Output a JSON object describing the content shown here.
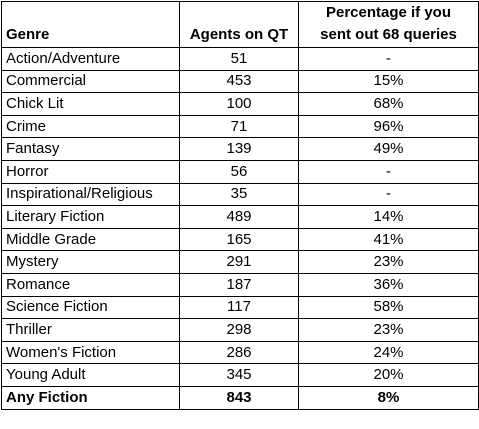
{
  "headers": {
    "genre": "Genre",
    "agents": "Agents on QT",
    "percentage": "Percentage if you sent out 68 queries"
  },
  "rows": [
    {
      "genre": "Action/Adventure",
      "agents": "51",
      "percentage": "-"
    },
    {
      "genre": "Commercial",
      "agents": "453",
      "percentage": "15%"
    },
    {
      "genre": "Chick Lit",
      "agents": "100",
      "percentage": "68%"
    },
    {
      "genre": "Crime",
      "agents": "71",
      "percentage": "96%"
    },
    {
      "genre": "Fantasy",
      "agents": "139",
      "percentage": "49%"
    },
    {
      "genre": "Horror",
      "agents": "56",
      "percentage": "-"
    },
    {
      "genre": "Inspirational/Religious",
      "agents": "35",
      "percentage": "-"
    },
    {
      "genre": "Literary Fiction",
      "agents": "489",
      "percentage": "14%"
    },
    {
      "genre": "Middle Grade",
      "agents": "165",
      "percentage": "41%"
    },
    {
      "genre": "Mystery",
      "agents": "291",
      "percentage": "23%"
    },
    {
      "genre": "Romance",
      "agents": "187",
      "percentage": "36%"
    },
    {
      "genre": "Science Fiction",
      "agents": "117",
      "percentage": "58%"
    },
    {
      "genre": "Thriller",
      "agents": "298",
      "percentage": "23%"
    },
    {
      "genre": "Women's Fiction",
      "agents": "286",
      "percentage": "24%"
    },
    {
      "genre": "Young Adult",
      "agents": "345",
      "percentage": "20%"
    }
  ],
  "total": {
    "genre": "Any Fiction",
    "agents": "843",
    "percentage": "8%"
  }
}
